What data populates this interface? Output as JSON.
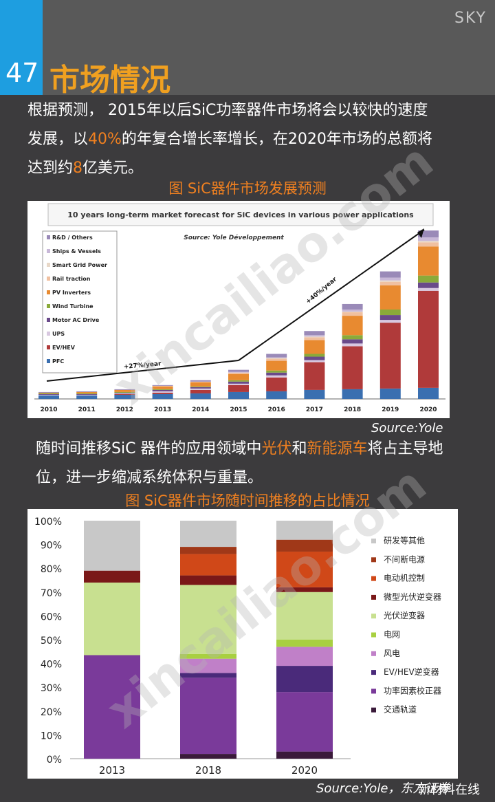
{
  "header": {
    "sky": "SKY",
    "page_number": "47",
    "title": "市场情况"
  },
  "paragraph1": {
    "lines": [
      "根据预测， 2015年以后SiC功率器件市场将会以较快的速度",
      "发展，以",
      "40%",
      "的年复合增长率增长，在2020年市场的总额将",
      "达到约",
      "8",
      "亿美元。"
    ]
  },
  "caption1": "图 SiC器件市场发展预测",
  "source1": "Source:Yole",
  "paragraph2": {
    "pre": "随时间推移SiC 器件的应用领域中",
    "hl1": "光伏",
    "mid": "和",
    "hl2": "新能源车",
    "post": "将占主导地",
    "line2": "位，进一步缩减系统体积与重量。"
  },
  "caption2": "图 SiC器件市场随时间推移的占比情况",
  "source2": "Source:Yole，东方证券",
  "watermark": "xincailiao.com",
  "wechat": "新材料在线",
  "chart_data": [
    {
      "type": "bar",
      "stacked": true,
      "title": "10 years long-term market forecast for SiC devices in various power applications",
      "subtitle": "Source: Yole Développement",
      "categories": [
        "2010",
        "2011",
        "2012",
        "2013",
        "2014",
        "2015",
        "2016",
        "2017",
        "2018",
        "2019",
        "2020"
      ],
      "annotations": [
        "+27%/year",
        "+40%/year"
      ],
      "series": [
        {
          "name": "PFC",
          "color": "#3a6fb0",
          "values": [
            5,
            5,
            6,
            7,
            8,
            10,
            11,
            13,
            14,
            15,
            16
          ]
        },
        {
          "name": "EV/HEV",
          "color": "#b03a3a",
          "values": [
            0,
            0,
            1,
            2,
            5,
            10,
            20,
            40,
            62,
            95,
            140
          ]
        },
        {
          "name": "UPS",
          "color": "#d8c8e0",
          "values": [
            1,
            1,
            1,
            2,
            2,
            2,
            3,
            3,
            4,
            4,
            4
          ]
        },
        {
          "name": "Motor AC Drive",
          "color": "#6a4a8a",
          "values": [
            1,
            1,
            1,
            2,
            2,
            3,
            4,
            5,
            6,
            7,
            8
          ]
        },
        {
          "name": "Wind Turbine",
          "color": "#8aaa3a",
          "values": [
            1,
            1,
            1,
            1,
            1,
            2,
            3,
            4,
            6,
            8,
            10
          ]
        },
        {
          "name": "PV Inverters",
          "color": "#e88a30",
          "values": [
            1,
            2,
            3,
            4,
            6,
            9,
            14,
            20,
            28,
            35,
            42
          ]
        },
        {
          "name": "Rail traction",
          "color": "#f0c0a0",
          "values": [
            0,
            0,
            0,
            1,
            1,
            2,
            3,
            4,
            5,
            5,
            6
          ]
        },
        {
          "name": "Smart Grid Power",
          "color": "#e8d8c8",
          "values": [
            0,
            0,
            0,
            0,
            0,
            0,
            1,
            1,
            1,
            2,
            2
          ]
        },
        {
          "name": "Ships & Vessels",
          "color": "#c8b8d8",
          "values": [
            0,
            0,
            0,
            0,
            0,
            1,
            1,
            2,
            3,
            4,
            5
          ]
        },
        {
          "name": "R&D / Others",
          "color": "#9a8ab8",
          "values": [
            1,
            1,
            1,
            1,
            2,
            3,
            5,
            6,
            8,
            9,
            10
          ]
        }
      ]
    },
    {
      "type": "bar",
      "stacked": true,
      "categories": [
        "2013",
        "2018",
        "2020"
      ],
      "ylim": [
        0,
        100
      ],
      "yticks": [
        "0%",
        "10%",
        "20%",
        "30%",
        "40%",
        "50%",
        "60%",
        "70%",
        "80%",
        "90%",
        "100%"
      ],
      "series": [
        {
          "name": "交通轨道",
          "color": "#3a1a3a",
          "values": [
            0,
            2,
            3
          ]
        },
        {
          "name": "功率因素校正器",
          "color": "#7a3a9a",
          "values": [
            43.5,
            32,
            25
          ]
        },
        {
          "name": "EV/HEV逆变器",
          "color": "#4a2a7a",
          "values": [
            0,
            2,
            11
          ]
        },
        {
          "name": "风电",
          "color": "#c080c8",
          "values": [
            0,
            6,
            8
          ]
        },
        {
          "name": "电网",
          "color": "#a8d040",
          "values": [
            0,
            2,
            3
          ]
        },
        {
          "name": "光伏逆变器",
          "color": "#c8e090",
          "values": [
            30.5,
            29,
            20
          ]
        },
        {
          "name": "微型光伏逆变器",
          "color": "#7a1818",
          "values": [
            5,
            4,
            2
          ]
        },
        {
          "name": "电动机控制",
          "color": "#d04818",
          "values": [
            0,
            9,
            15
          ]
        },
        {
          "name": "不间断电源",
          "color": "#a03818",
          "values": [
            0,
            3,
            5
          ]
        },
        {
          "name": "研发等其他",
          "color": "#c8c8c8",
          "values": [
            21,
            11,
            8
          ]
        }
      ]
    }
  ]
}
